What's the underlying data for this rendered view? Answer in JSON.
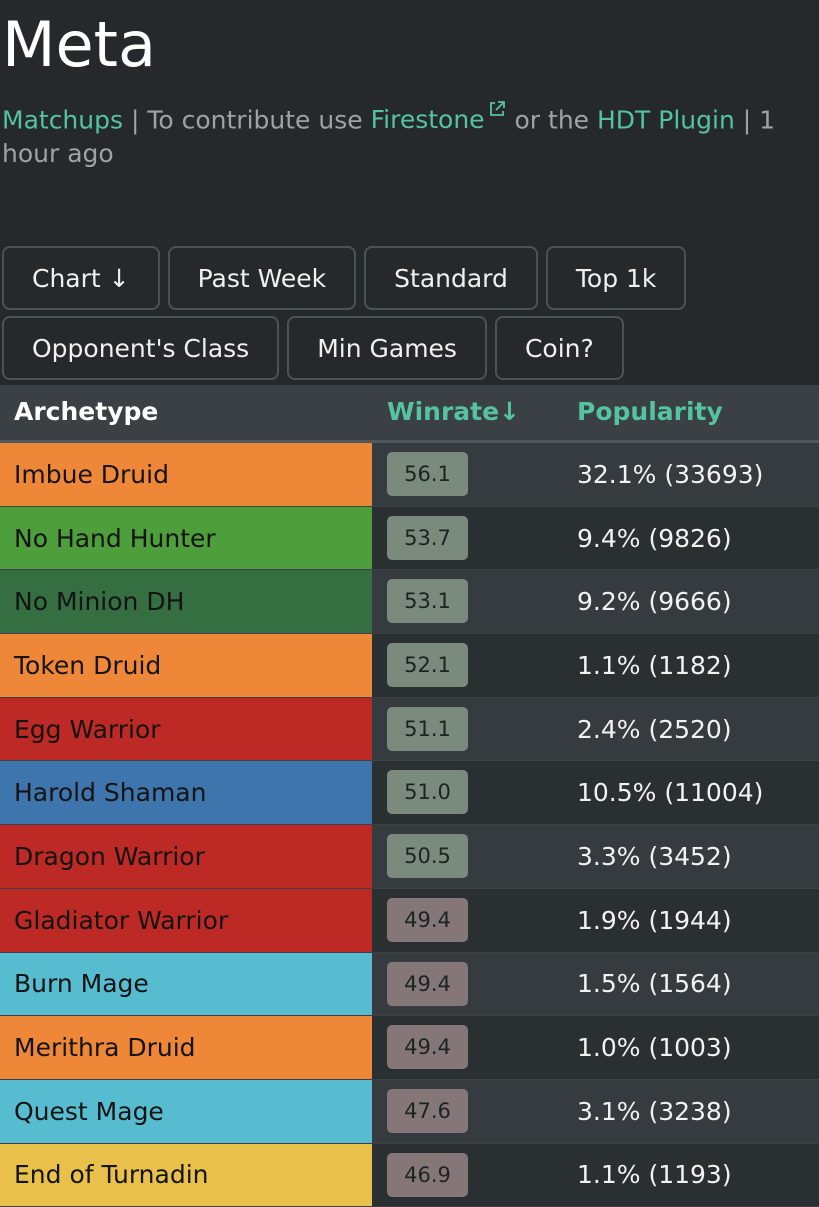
{
  "page": {
    "title": "Meta",
    "links": {
      "matchups": "Matchups",
      "sep1": " | To contribute use ",
      "firestone": "Firestone",
      "or_the": " or the ",
      "hdt": "HDT Plugin",
      "updated": " | 1 hour ago"
    }
  },
  "filters": {
    "row1": [
      "Chart ↓",
      "Past Week",
      "Standard",
      "Top 1k"
    ],
    "row2": [
      "Opponent's Class",
      "Min Games",
      "Coin?"
    ]
  },
  "table": {
    "headers": {
      "archetype": "Archetype",
      "winrate": "Winrate↓",
      "popularity": "Popularity"
    },
    "rows": [
      {
        "archetype": "Imbue Druid",
        "winrate": "56.1",
        "popularity": "32.1% (33693)",
        "class_color": "#ee8838",
        "badge_color": "#7a8a7c"
      },
      {
        "archetype": "No Hand Hunter",
        "winrate": "53.7",
        "popularity": "9.4% (9826)",
        "class_color": "#4e9e3c",
        "badge_color": "#7a8a7c"
      },
      {
        "archetype": "No Minion DH",
        "winrate": "53.1",
        "popularity": "9.2% (9666)",
        "class_color": "#356f41",
        "badge_color": "#7a8a7c"
      },
      {
        "archetype": "Token Druid",
        "winrate": "52.1",
        "popularity": "1.1% (1182)",
        "class_color": "#ee8838",
        "badge_color": "#7a8a7c"
      },
      {
        "archetype": "Egg Warrior",
        "winrate": "51.1",
        "popularity": "2.4% (2520)",
        "class_color": "#bd2a25",
        "badge_color": "#7a8a7c"
      },
      {
        "archetype": "Harold Shaman",
        "winrate": "51.0",
        "popularity": "10.5% (11004)",
        "class_color": "#3f75ad",
        "badge_color": "#7a8a7c"
      },
      {
        "archetype": "Dragon Warrior",
        "winrate": "50.5",
        "popularity": "3.3% (3452)",
        "class_color": "#bd2a25",
        "badge_color": "#7a8a7c"
      },
      {
        "archetype": "Gladiator Warrior",
        "winrate": "49.4",
        "popularity": "1.9% (1944)",
        "class_color": "#bd2a25",
        "badge_color": "#857777"
      },
      {
        "archetype": "Burn Mage",
        "winrate": "49.4",
        "popularity": "1.5% (1564)",
        "class_color": "#58bcd0",
        "badge_color": "#857777"
      },
      {
        "archetype": "Merithra Druid",
        "winrate": "49.4",
        "popularity": "1.0% (1003)",
        "class_color": "#ee8838",
        "badge_color": "#857777"
      },
      {
        "archetype": "Quest Mage",
        "winrate": "47.6",
        "popularity": "3.1% (3238)",
        "class_color": "#58bcd0",
        "badge_color": "#857777"
      },
      {
        "archetype": "End of Turnadin",
        "winrate": "46.9",
        "popularity": "1.1% (1193)",
        "class_color": "#e8c04a",
        "badge_color": "#857777"
      }
    ]
  },
  "colors": {
    "background": "#25292b",
    "accent": "#55c3a1"
  },
  "icons": {
    "external_link": "external-link-icon"
  }
}
